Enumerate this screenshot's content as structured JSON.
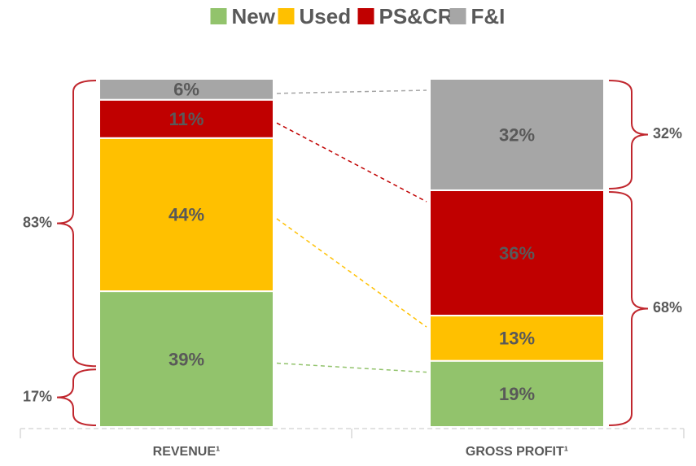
{
  "chart_data": {
    "type": "stacked_bar",
    "categories": [
      "REVENUE¹",
      "GROSS PROFIT¹"
    ],
    "series": [
      {
        "name": "New",
        "color": "#92c36c",
        "values": [
          39,
          19
        ],
        "value_labels": [
          "39%",
          "19%"
        ]
      },
      {
        "name": "Used",
        "color": "#ffc000",
        "values": [
          44,
          13
        ],
        "value_labels": [
          "44%",
          "13%"
        ]
      },
      {
        "name": "PS&CR",
        "color": "#c00000",
        "values": [
          11,
          36
        ],
        "value_labels": [
          "11%",
          "36%"
        ]
      },
      {
        "name": "F&I",
        "color": "#a6a6a6",
        "values": [
          6,
          32
        ],
        "value_labels": [
          "6%",
          "32%"
        ]
      }
    ],
    "ylim": [
      0,
      100
    ],
    "braces": [
      [
        {
          "value": 17,
          "label": "17%"
        },
        {
          "value": 83,
          "label": "83%"
        }
      ],
      [
        {
          "value": 68,
          "label": "68%"
        },
        {
          "value": 32,
          "label": "32%"
        }
      ]
    ],
    "brace_color": "#c0262d",
    "legend": "top"
  }
}
